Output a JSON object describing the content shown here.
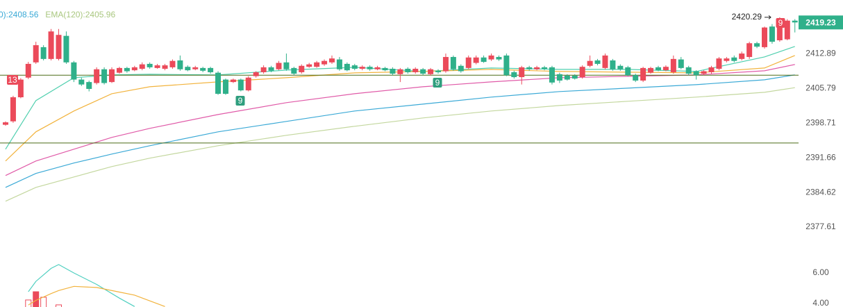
{
  "chart_data": {
    "type": "candlestick",
    "legend": [
      {
        "text": "0):2408.56",
        "color": "#3aa9d6"
      },
      {
        "text": "EMA(120):2405.96",
        "color": "#a9c77f"
      }
    ],
    "ylim": [
      2372.9,
      2423.8
    ],
    "yticks": [
      2412.89,
      2405.79,
      2398.71,
      2391.66,
      2384.62,
      2377.61
    ],
    "up_color": "#eb4a5a",
    "down_color": "#2fb08a",
    "ohlc": [
      [
        2398.4,
        2399.1,
        2398.2,
        2398.9
      ],
      [
        2399.1,
        2404.3,
        2398.8,
        2404.0
      ],
      [
        2404.0,
        2407.9,
        2403.8,
        2407.6
      ],
      [
        2408.0,
        2411.2,
        2407.7,
        2410.8
      ],
      [
        2411.1,
        2415.3,
        2410.8,
        2414.6
      ],
      [
        2414.2,
        2414.6,
        2411.5,
        2411.8
      ],
      [
        2411.8,
        2417.9,
        2411.5,
        2417.4
      ],
      [
        2411.8,
        2417.9,
        2411.5,
        2416.7
      ],
      [
        2416.5,
        2417.4,
        2410.8,
        2411.1
      ],
      [
        2411.1,
        2411.4,
        2407.1,
        2407.6
      ],
      [
        2407.6,
        2408.0,
        2406.3,
        2406.6
      ],
      [
        2407.1,
        2407.4,
        2405.2,
        2405.7
      ],
      [
        2406.9,
        2410.1,
        2406.6,
        2409.7
      ],
      [
        2409.7,
        2410.1,
        2406.6,
        2406.9
      ],
      [
        2407.1,
        2410.1,
        2406.9,
        2409.7
      ],
      [
        2409.0,
        2410.2,
        2408.8,
        2409.96
      ],
      [
        2409.96,
        2410.2,
        2409.0,
        2409.3
      ],
      [
        2409.5,
        2410.4,
        2409.3,
        2410.1
      ],
      [
        2409.8,
        2411.1,
        2409.5,
        2410.7
      ],
      [
        2410.8,
        2411.1,
        2409.8,
        2410.1
      ],
      [
        2409.96,
        2410.8,
        2409.8,
        2410.5
      ],
      [
        2409.8,
        2410.8,
        2409.5,
        2410.5
      ],
      [
        2410.1,
        2411.7,
        2409.8,
        2411.4
      ],
      [
        2411.5,
        2412.5,
        2409.4,
        2409.7
      ],
      [
        2410.2,
        2410.5,
        2409.3,
        2409.5
      ],
      [
        2409.7,
        2410.4,
        2409.5,
        2410.1
      ],
      [
        2409.96,
        2410.2,
        2409.1,
        2409.4
      ],
      [
        2409.96,
        2410.2,
        2408.8,
        2409.1
      ],
      [
        2409.0,
        2409.3,
        2404.5,
        2404.7
      ],
      [
        2407.6,
        2407.8,
        2404.5,
        2404.7
      ],
      [
        2407.1,
        2407.8,
        2406.9,
        2407.6
      ],
      [
        2407.6,
        2407.8,
        2405.2,
        2405.4
      ],
      [
        2405.4,
        2408.3,
        2405.2,
        2408.0
      ],
      [
        2408.3,
        2409.3,
        2408.0,
        2409.1
      ],
      [
        2409.1,
        2410.5,
        2408.8,
        2410.1
      ],
      [
        2410.1,
        2410.4,
        2409.1,
        2409.4
      ],
      [
        2409.7,
        2411.4,
        2409.5,
        2411.0
      ],
      [
        2411.1,
        2412.9,
        2409.4,
        2409.7
      ],
      [
        2409.96,
        2410.2,
        2408.5,
        2408.8
      ],
      [
        2409.1,
        2410.7,
        2408.8,
        2410.4
      ],
      [
        2410.2,
        2411.0,
        2410.0,
        2410.7
      ],
      [
        2410.2,
        2411.4,
        2410.0,
        2411.1
      ],
      [
        2410.7,
        2411.7,
        2410.4,
        2411.4
      ],
      [
        2411.1,
        2412.5,
        2410.8,
        2411.9
      ],
      [
        2411.7,
        2412.2,
        2409.4,
        2409.7
      ],
      [
        2410.8,
        2411.1,
        2409.3,
        2409.5
      ],
      [
        2410.5,
        2410.8,
        2409.5,
        2409.8
      ],
      [
        2409.8,
        2410.5,
        2409.5,
        2410.2
      ],
      [
        2410.2,
        2410.5,
        2409.4,
        2409.7
      ],
      [
        2409.7,
        2410.4,
        2409.5,
        2410.1
      ],
      [
        2409.96,
        2410.2,
        2409.3,
        2409.5
      ],
      [
        2409.8,
        2410.1,
        2408.5,
        2408.8
      ],
      [
        2408.7,
        2409.96,
        2407.1,
        2409.7
      ],
      [
        2409.8,
        2410.1,
        2408.8,
        2409.1
      ],
      [
        2409.1,
        2410.1,
        2408.8,
        2409.8
      ],
      [
        2409.7,
        2409.96,
        2408.5,
        2408.8
      ],
      [
        2408.7,
        2409.96,
        2408.4,
        2409.7
      ],
      [
        2409.4,
        2409.7,
        2408.8,
        2409.1
      ],
      [
        2409.3,
        2412.9,
        2409.0,
        2412.2
      ],
      [
        2412.2,
        2412.5,
        2409.4,
        2409.7
      ],
      [
        2410.4,
        2410.7,
        2409.0,
        2409.3
      ],
      [
        2409.96,
        2412.5,
        2409.7,
        2412.1
      ],
      [
        2411.0,
        2412.5,
        2410.7,
        2412.1
      ],
      [
        2412.1,
        2412.5,
        2411.0,
        2411.2
      ],
      [
        2411.7,
        2412.9,
        2411.4,
        2412.5
      ],
      [
        2412.2,
        2412.5,
        2411.4,
        2411.7
      ],
      [
        2412.5,
        2412.9,
        2408.3,
        2408.5
      ],
      [
        2409.1,
        2409.4,
        2407.8,
        2408.1
      ],
      [
        2408.1,
        2410.4,
        2406.6,
        2410.1
      ],
      [
        2410.1,
        2410.4,
        2409.4,
        2409.7
      ],
      [
        2409.7,
        2410.4,
        2409.5,
        2410.1
      ],
      [
        2410.1,
        2410.4,
        2409.5,
        2409.8
      ],
      [
        2410.1,
        2410.4,
        2406.6,
        2407.0
      ],
      [
        2408.7,
        2409.0,
        2406.9,
        2407.4
      ],
      [
        2408.4,
        2408.7,
        2407.4,
        2407.6
      ],
      [
        2408.4,
        2408.7,
        2407.6,
        2407.8
      ],
      [
        2408.1,
        2410.5,
        2407.8,
        2410.2
      ],
      [
        2410.4,
        2412.5,
        2410.1,
        2411.4
      ],
      [
        2411.5,
        2411.8,
        2410.5,
        2410.8
      ],
      [
        2409.96,
        2412.9,
        2409.7,
        2412.5
      ],
      [
        2411.5,
        2411.8,
        2409.4,
        2409.7
      ],
      [
        2410.4,
        2410.7,
        2409.4,
        2409.7
      ],
      [
        2410.1,
        2410.4,
        2408.3,
        2408.5
      ],
      [
        2408.5,
        2408.8,
        2407.1,
        2407.4
      ],
      [
        2407.4,
        2410.2,
        2407.1,
        2409.96
      ],
      [
        2409.0,
        2410.2,
        2408.8,
        2409.96
      ],
      [
        2410.1,
        2410.4,
        2409.3,
        2409.5
      ],
      [
        2409.5,
        2410.5,
        2409.3,
        2410.2
      ],
      [
        2409.1,
        2412.5,
        2408.8,
        2411.8
      ],
      [
        2411.7,
        2412.2,
        2409.7,
        2409.96
      ],
      [
        2410.1,
        2410.4,
        2408.5,
        2408.8
      ],
      [
        2409.3,
        2409.5,
        2407.6,
        2408.5
      ],
      [
        2408.8,
        2409.5,
        2408.5,
        2409.3
      ],
      [
        2409.1,
        2410.4,
        2408.8,
        2410.1
      ],
      [
        2409.8,
        2412.2,
        2409.5,
        2411.9
      ],
      [
        2411.4,
        2412.2,
        2411.1,
        2411.9
      ],
      [
        2412.1,
        2412.5,
        2411.1,
        2411.4
      ],
      [
        2411.8,
        2413.3,
        2411.5,
        2412.9
      ],
      [
        2412.2,
        2415.3,
        2411.8,
        2415.0
      ],
      [
        2415.0,
        2415.3,
        2414.0,
        2414.3
      ],
      [
        2414.2,
        2418.4,
        2413.9,
        2418.2
      ],
      [
        2418.4,
        2418.9,
        2414.9,
        2415.3
      ],
      [
        2415.6,
        2420.29,
        2415.3,
        2419.9
      ],
      [
        2415.8,
        2419.9,
        2415.6,
        2419.6
      ],
      [
        2419.6,
        2419.9,
        2417.2,
        2419.23
      ]
    ],
    "lines_x": [
      0,
      4,
      9,
      14,
      19,
      28,
      37,
      46,
      55,
      64,
      73,
      82,
      91,
      100,
      104
    ],
    "lines": [
      {
        "color": "#4fcfae",
        "values": [
          2393.43,
          2403.32,
          2407.98,
          2408.55,
          2408.69,
          2408.55,
          2409.53,
          2410.1,
          2409.25,
          2409.96,
          2409.68,
          2409.68,
          2409.25,
          2412.22,
          2414.34
        ]
      },
      {
        "color": "#f2b33d",
        "values": [
          2391.03,
          2396.96,
          2401.2,
          2404.73,
          2406.14,
          2407.13,
          2407.98,
          2408.97,
          2409.25,
          2409.68,
          2409.25,
          2409.11,
          2408.97,
          2409.96,
          2412.5
        ]
      },
      {
        "color": "#e05aa8",
        "values": [
          2388.07,
          2391.03,
          2393.43,
          2395.83,
          2397.67,
          2400.49,
          2402.9,
          2404.73,
          2406.14,
          2407.13,
          2407.98,
          2408.26,
          2408.55,
          2409.39,
          2410.66
        ]
      },
      {
        "color": "#3aa9d6",
        "values": [
          2385.66,
          2388.49,
          2390.61,
          2392.44,
          2394.14,
          2396.96,
          2399.08,
          2401.2,
          2402.61,
          2404.03,
          2405.16,
          2405.86,
          2406.57,
          2407.56,
          2408.56
        ]
      },
      {
        "color": "#c3d79e",
        "values": [
          2382.84,
          2385.66,
          2387.78,
          2389.9,
          2391.6,
          2394.14,
          2396.26,
          2398.09,
          2399.79,
          2401.2,
          2402.33,
          2403.18,
          2404.03,
          2405.01,
          2405.96
        ]
      }
    ],
    "hlines": [
      {
        "value": 2408.5,
        "color": "#4b6b16"
      },
      {
        "value": 2394.7,
        "color": "#4b6b16"
      }
    ],
    "signals": [
      {
        "label": "13",
        "color": "#eb4a5a"
      },
      {
        "label": "9",
        "color": "#2f9e7e"
      },
      {
        "label": "9",
        "color": "#2f9e7e"
      },
      {
        "label": "9",
        "color": "#eb4a5a"
      }
    ],
    "last_color": "#2fb08a",
    "sub": {
      "type": "line",
      "ylim": [
        3.77,
        7.5
      ],
      "yticks": [
        {
          "value": 6,
          "label": "6.00"
        },
        {
          "value": 4,
          "label": "4.00"
        }
      ],
      "series": [
        {
          "color": "#4fcfc0",
          "x": [
            3,
            4,
            6,
            7,
            9,
            12,
            15,
            17
          ],
          "values": [
            4.77,
            5.45,
            6.3,
            6.55,
            6.0,
            5.25,
            4.35,
            3.8
          ]
        },
        {
          "color": "#f2b33d",
          "x": [
            3,
            4,
            6,
            7,
            9,
            12,
            15,
            17,
            21
          ],
          "values": [
            3.9,
            4.2,
            4.65,
            4.85,
            5.12,
            5.05,
            4.75,
            4.55,
            3.8
          ]
        }
      ],
      "bars": {
        "color": "#eb4a5a",
        "x": [
          3,
          4,
          5,
          7
        ],
        "values": [
          4.23,
          4.77,
          4.41,
          3.91
        ]
      }
    }
  }
}
